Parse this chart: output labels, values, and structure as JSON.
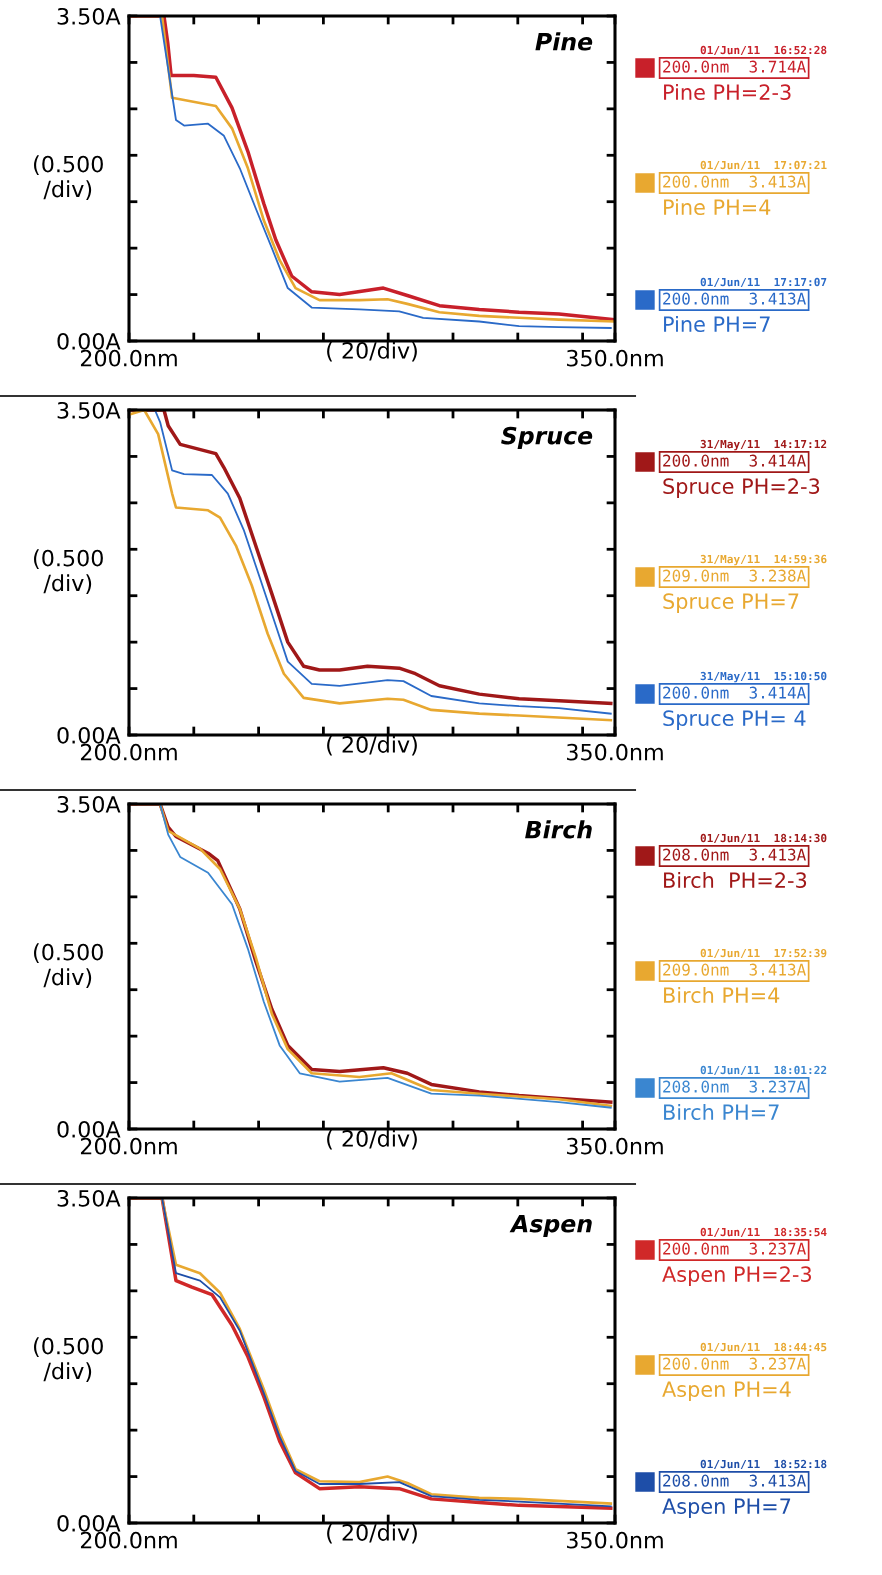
{
  "chart_data": [
    {
      "type": "line",
      "title": "Pine",
      "xlabel": "( 20/div)",
      "ylabel": "(0.500\n/div)",
      "xlim": [
        200,
        350
      ],
      "ylim": [
        0,
        3.5
      ],
      "xticks": [
        {
          "value": 200,
          "label": "200.0nm"
        },
        {
          "value": 220,
          "label": null
        },
        {
          "value": 240,
          "label": null
        },
        {
          "value": 260,
          "label": null
        },
        {
          "value": 280,
          "label": null
        },
        {
          "value": 300,
          "label": null
        },
        {
          "value": 320,
          "label": null
        },
        {
          "value": 340,
          "label": null
        },
        {
          "value": 350,
          "label": "350.0nm"
        }
      ],
      "yticks": [
        {
          "value": 0,
          "label": "0.00A"
        },
        {
          "value": 0.5,
          "label": null
        },
        {
          "value": 1,
          "label": null
        },
        {
          "value": 1.5,
          "label": null
        },
        {
          "value": 2,
          "label": null
        },
        {
          "value": 2.5,
          "label": null
        },
        {
          "value": 3,
          "label": null
        },
        {
          "value": 3.5,
          "label": "3.50A"
        }
      ],
      "grid": false,
      "legend": "right",
      "annotations": [
        "01/Jun/11  16:52:28",
        "200.0nm  3.714A",
        "01/Jun/11  17:07:21",
        "200.0nm  3.413A",
        "01/Jun/11  17:17:07",
        "200.0nm  3.413A"
      ],
      "series": [
        {
          "name": "Pine PH=2-3",
          "color": "#c8202a",
          "x": [
            200,
            210.8,
            212,
            213,
            220,
            226.8,
            231.8,
            236.7,
            241.6,
            245.3,
            250.2,
            256.4,
            265,
            278.5,
            285.9,
            295.8,
            308.1,
            320.4,
            332.7,
            349.5
          ],
          "values": [
            3.5,
            3.5,
            3.2,
            2.86,
            2.86,
            2.84,
            2.51,
            2.04,
            1.48,
            1.09,
            0.7,
            0.53,
            0.5,
            0.57,
            0.49,
            0.38,
            0.34,
            0.31,
            0.29,
            0.23
          ]
        },
        {
          "name": "Pine PH=4",
          "color": "#e8a830",
          "x": [
            200,
            210.2,
            213.3,
            226.8,
            231.8,
            236.7,
            241.6,
            246.5,
            251.4,
            258.8,
            271.1,
            279.8,
            285.9,
            295.8,
            308.1,
            320.4,
            332.7,
            349.5
          ],
          "values": [
            3.5,
            3.5,
            2.62,
            2.53,
            2.29,
            1.86,
            1.3,
            0.87,
            0.57,
            0.44,
            0.44,
            0.45,
            0.4,
            0.31,
            0.27,
            0.25,
            0.23,
            0.21
          ]
        },
        {
          "name": "Pine PH=7",
          "color": "#2a6ac8",
          "x": [
            200,
            209.6,
            214.5,
            217,
            224.4,
            229.3,
            234.2,
            239.1,
            244.1,
            249,
            256.4,
            271.1,
            283.4,
            290.8,
            308.1,
            320.4,
            332.7,
            348.7
          ],
          "values": [
            3.5,
            3.5,
            2.38,
            2.32,
            2.34,
            2.21,
            1.86,
            1.43,
            1.0,
            0.57,
            0.36,
            0.34,
            0.32,
            0.25,
            0.21,
            0.16,
            0.15,
            0.14
          ]
        }
      ]
    },
    {
      "type": "line",
      "title": "Spruce",
      "xlabel": "( 20/div)",
      "ylabel": "(0.500\n/div)",
      "xlim": [
        200,
        350
      ],
      "ylim": [
        0,
        3.5
      ],
      "xticks": [
        {
          "value": 200,
          "label": "200.0nm"
        },
        {
          "value": 220,
          "label": null
        },
        {
          "value": 240,
          "label": null
        },
        {
          "value": 260,
          "label": null
        },
        {
          "value": 280,
          "label": null
        },
        {
          "value": 300,
          "label": null
        },
        {
          "value": 320,
          "label": null
        },
        {
          "value": 340,
          "label": null
        },
        {
          "value": 350,
          "label": "350.0nm"
        }
      ],
      "yticks": [
        {
          "value": 0,
          "label": "0.00A"
        },
        {
          "value": 0.5,
          "label": null
        },
        {
          "value": 1,
          "label": null
        },
        {
          "value": 1.5,
          "label": null
        },
        {
          "value": 2,
          "label": null
        },
        {
          "value": 2.5,
          "label": null
        },
        {
          "value": 3,
          "label": null
        },
        {
          "value": 3.5,
          "label": "3.50A"
        }
      ],
      "grid": false,
      "legend": "right",
      "annotations": [
        "31/May/11  14:17:12",
        "200.0nm  3.414A",
        "31/May/11  14:59:36",
        "209.0nm  3.238A",
        "31/May/11  15:10:50",
        "200.0nm  3.414A"
      ],
      "series": [
        {
          "name": "Spruce PH=2-3",
          "color": "#a01818",
          "x": [
            200,
            210.8,
            212.1,
            215.8,
            226.8,
            229.3,
            234.2,
            239.1,
            244.1,
            249,
            253.9,
            258.8,
            265,
            273.6,
            283.4,
            288.4,
            295.8,
            308.1,
            320.4,
            332.7,
            348.7
          ],
          "values": [
            3.5,
            3.5,
            3.33,
            3.13,
            3.03,
            2.88,
            2.55,
            2.04,
            1.52,
            1.0,
            0.74,
            0.7,
            0.7,
            0.74,
            0.72,
            0.66,
            0.53,
            0.44,
            0.39,
            0.37,
            0.34
          ]
        },
        {
          "name": "Spruce PH=7",
          "color": "#e8a830",
          "x": [
            200,
            204.7,
            209,
            213.3,
            214.5,
            224.4,
            228.1,
            233,
            237.9,
            242.8,
            247.8,
            253.9,
            265,
            279.8,
            284.7,
            293.3,
            308.1,
            320.4,
            348.7
          ],
          "values": [
            3.45,
            3.5,
            3.24,
            2.6,
            2.45,
            2.42,
            2.34,
            2.04,
            1.61,
            1.09,
            0.66,
            0.4,
            0.34,
            0.39,
            0.38,
            0.27,
            0.23,
            0.21,
            0.16
          ]
        },
        {
          "name": "Spruce PH= 4",
          "color": "#2a6ac8",
          "x": [
            200,
            208,
            209.6,
            213.3,
            217,
            225.6,
            230.5,
            235.4,
            240.4,
            245.3,
            249,
            256.4,
            265,
            279.8,
            284.7,
            293.3,
            308.1,
            320.4,
            332.7,
            348.7
          ],
          "values": [
            3.5,
            3.5,
            3.37,
            2.85,
            2.81,
            2.8,
            2.6,
            2.21,
            1.69,
            1.18,
            0.79,
            0.55,
            0.53,
            0.59,
            0.58,
            0.42,
            0.34,
            0.31,
            0.29,
            0.23
          ]
        }
      ]
    },
    {
      "type": "line",
      "title": "Birch",
      "xlabel": "( 20/div)",
      "ylabel": "(0.500\n/div)",
      "xlim": [
        200,
        350
      ],
      "ylim": [
        0,
        3.5
      ],
      "xticks": [
        {
          "value": 200,
          "label": "200.0nm"
        },
        {
          "value": 220,
          "label": null
        },
        {
          "value": 240,
          "label": null
        },
        {
          "value": 260,
          "label": null
        },
        {
          "value": 280,
          "label": null
        },
        {
          "value": 300,
          "label": null
        },
        {
          "value": 320,
          "label": null
        },
        {
          "value": 340,
          "label": null
        },
        {
          "value": 350,
          "label": "350.0nm"
        }
      ],
      "yticks": [
        {
          "value": 0,
          "label": "0.00A"
        },
        {
          "value": 0.5,
          "label": null
        },
        {
          "value": 1,
          "label": null
        },
        {
          "value": 1.5,
          "label": null
        },
        {
          "value": 2,
          "label": null
        },
        {
          "value": 2.5,
          "label": null
        },
        {
          "value": 3,
          "label": null
        },
        {
          "value": 3.5,
          "label": "3.50A"
        }
      ],
      "grid": false,
      "legend": "right",
      "annotations": [
        "01/Jun/11  18:14:30",
        "208.0nm  3.413A",
        "01/Jun/11  17:52:39",
        "209.0nm  3.413A",
        "01/Jun/11  18:01:22",
        "208.0nm  3.237A"
      ],
      "series": [
        {
          "name": "Birch  PH=2-3",
          "color": "#a01818",
          "x": [
            201,
            209.6,
            212.1,
            214.5,
            224.4,
            227.4,
            234.2,
            239.1,
            244.1,
            249,
            256.4,
            265,
            278.5,
            285.9,
            293.3,
            308.1,
            320.4,
            332.7,
            348.7
          ],
          "values": [
            3.5,
            3.5,
            3.25,
            3.15,
            2.97,
            2.89,
            2.37,
            1.81,
            1.29,
            0.9,
            0.64,
            0.62,
            0.66,
            0.6,
            0.48,
            0.4,
            0.36,
            0.33,
            0.29
          ]
        },
        {
          "name": "Birch PH=4",
          "color": "#e8a830",
          "x": [
            201,
            209.6,
            212.1,
            221.9,
            228.1,
            234.2,
            239.1,
            244.1,
            249,
            256.4,
            271.1,
            281,
            293.3,
            308.1,
            332.7,
            348.7
          ],
          "values": [
            3.5,
            3.5,
            3.21,
            3.02,
            2.8,
            2.37,
            1.85,
            1.24,
            0.86,
            0.6,
            0.56,
            0.6,
            0.42,
            0.38,
            0.32,
            0.25
          ]
        },
        {
          "name": "Birch PH=7",
          "color": "#3a86d0",
          "x": [
            201,
            209.6,
            212.1,
            215.8,
            224.4,
            231.8,
            236.7,
            241.6,
            246.5,
            252.7,
            265,
            279.8,
            293.3,
            308.1,
            332.7,
            348.7
          ],
          "values": [
            3.5,
            3.5,
            3.17,
            2.93,
            2.76,
            2.42,
            1.94,
            1.37,
            0.9,
            0.6,
            0.51,
            0.55,
            0.38,
            0.36,
            0.29,
            0.23
          ]
        }
      ]
    },
    {
      "type": "line",
      "title": "Aspen",
      "xlabel": "( 20/div)",
      "ylabel": "(0.500\n/div)",
      "xlim": [
        200,
        350
      ],
      "ylim": [
        0,
        3.5
      ],
      "xticks": [
        {
          "value": 200,
          "label": "200.0nm"
        },
        {
          "value": 220,
          "label": null
        },
        {
          "value": 240,
          "label": null
        },
        {
          "value": 260,
          "label": null
        },
        {
          "value": 280,
          "label": null
        },
        {
          "value": 300,
          "label": null
        },
        {
          "value": 320,
          "label": null
        },
        {
          "value": 340,
          "label": null
        },
        {
          "value": 350,
          "label": "350.0nm"
        }
      ],
      "yticks": [
        {
          "value": 0,
          "label": "0.00A"
        },
        {
          "value": 0.5,
          "label": null
        },
        {
          "value": 1,
          "label": null
        },
        {
          "value": 1.5,
          "label": null
        },
        {
          "value": 2,
          "label": null
        },
        {
          "value": 2.5,
          "label": null
        },
        {
          "value": 3,
          "label": null
        },
        {
          "value": 3.5,
          "label": "3.50A"
        }
      ],
      "grid": false,
      "legend": "right",
      "annotations": [
        "01/Jun/11  18:35:54",
        "200.0nm  3.237A",
        "01/Jun/11  18:44:45",
        "200.0nm  3.237A",
        "01/Jun/11  18:52:18",
        "208.0nm  3.413A"
      ],
      "series": [
        {
          "name": "Aspen PH=2-3",
          "color": "#d02828",
          "x": [
            201,
            210.2,
            214.5,
            219.4,
            225.6,
            231.8,
            236.7,
            241.6,
            246.5,
            251.4,
            258.8,
            271.1,
            283.4,
            293.3,
            308.1,
            320.4,
            348.7
          ],
          "values": [
            3.5,
            3.5,
            2.61,
            2.54,
            2.46,
            2.13,
            1.79,
            1.36,
            0.88,
            0.54,
            0.37,
            0.39,
            0.37,
            0.26,
            0.22,
            0.19,
            0.16
          ]
        },
        {
          "name": "Aspen PH=4",
          "color": "#e8a830",
          "x": [
            201,
            210.2,
            214.5,
            221.9,
            228.1,
            234.2,
            241.6,
            246.5,
            251.4,
            258.8,
            271.1,
            279.8,
            285.9,
            293.3,
            308.1,
            320.4,
            348.7
          ],
          "values": [
            3.5,
            3.5,
            2.78,
            2.69,
            2.48,
            2.09,
            1.44,
            0.97,
            0.58,
            0.45,
            0.44,
            0.5,
            0.43,
            0.31,
            0.27,
            0.26,
            0.21
          ]
        },
        {
          "name": "Aspen PH=7",
          "color": "#1e4ea8",
          "x": [
            201,
            210.2,
            214.5,
            221.9,
            228.1,
            234.2,
            241.6,
            246.5,
            251.4,
            258.8,
            271.1,
            283.4,
            293.3,
            308.1,
            320.4,
            348.7
          ],
          "values": [
            3.5,
            3.5,
            2.69,
            2.61,
            2.43,
            2.07,
            1.4,
            0.93,
            0.56,
            0.42,
            0.42,
            0.44,
            0.29,
            0.25,
            0.23,
            0.18
          ]
        }
      ]
    }
  ]
}
